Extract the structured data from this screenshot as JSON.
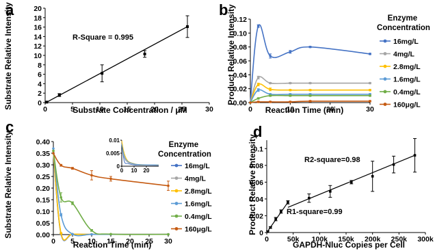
{
  "series_colors": [
    "#4472c4",
    "#a5a5a5",
    "#ffc000",
    "#5b9bd5",
    "#70ad47",
    "#c55a11"
  ],
  "chart_data": [
    {
      "panel": "a",
      "type": "scatter",
      "xlabel": "Substrate Concentration / μM",
      "ylabel": "Substrate Relative Intensity",
      "xlim": [
        0,
        30
      ],
      "ylim": [
        0,
        20
      ],
      "xticks": [
        0,
        5,
        10,
        15,
        20,
        25,
        30
      ],
      "yticks": [
        0,
        2,
        4,
        6,
        8,
        10,
        12,
        14,
        16,
        18,
        20
      ],
      "annotations": [
        {
          "text": "R-Square = 0.995"
        }
      ],
      "points": [
        {
          "x": 0.3,
          "y": 0.1,
          "err": 0.1
        },
        {
          "x": 2.6,
          "y": 1.6,
          "err": 0.3
        },
        {
          "x": 10.4,
          "y": 6.2,
          "err": 1.8
        },
        {
          "x": 18.2,
          "y": 10.3,
          "err": 0.7
        },
        {
          "x": 26,
          "y": 16.1,
          "err": 2.3
        }
      ],
      "fit_line": {
        "x": [
          0.3,
          26
        ],
        "y": [
          0.1,
          16.1
        ]
      }
    },
    {
      "panel": "b",
      "type": "line",
      "xlabel": "Reaction Time (min)",
      "ylabel": "Product Relative Intensity",
      "xlim": [
        0,
        30
      ],
      "ylim": [
        0,
        0.12
      ],
      "xticks": [
        0,
        10,
        20,
        30
      ],
      "yticks": [
        0,
        0.02,
        0.04,
        0.06,
        0.08,
        0.1,
        0.12
      ],
      "ytick_labels": [
        "0.00",
        "0.02",
        "0.04",
        "0.06",
        "0.08",
        "0.10",
        "0.12"
      ],
      "legend_title": "Enzyme Concentration",
      "legend_placement": "right",
      "x": [
        0,
        2,
        5,
        10,
        15,
        30
      ],
      "series": [
        {
          "name": "16mg/L",
          "values": [
            0,
            0.11,
            0.067,
            0.073,
            0.08,
            0.07
          ],
          "err": [
            0,
            0.002,
            0.003,
            0.002,
            0.001,
            0.001
          ]
        },
        {
          "name": "4mg/L",
          "values": [
            0,
            0.036,
            0.028,
            0.028,
            0.028,
            0.028
          ],
          "err": [
            0,
            0.002,
            0.001,
            0.001,
            0.001,
            0.001
          ]
        },
        {
          "name": "2.8mg/L",
          "values": [
            0,
            0.026,
            0.019,
            0.018,
            0.018,
            0.018
          ],
          "err": [
            0,
            0.002,
            0.002,
            0.001,
            0.001,
            0.001
          ]
        },
        {
          "name": "1.6mg/L",
          "values": [
            0,
            0.018,
            0.012,
            0.012,
            0.012,
            0.012
          ],
          "err": [
            0,
            0.002,
            0.001,
            0.001,
            0.001,
            0.001
          ]
        },
        {
          "name": "0.4mg/L",
          "values": [
            0,
            0.006,
            0.01,
            0.01,
            0.01,
            0.01
          ],
          "err": [
            0,
            0.001,
            0.001,
            0.001,
            0.001,
            0.001
          ]
        },
        {
          "name": "160μg/L",
          "values": [
            0,
            0.001,
            0.001,
            0.001,
            0.002,
            0.002
          ],
          "err": [
            0,
            0.001,
            0.001,
            0.001,
            0.001,
            0.001
          ]
        }
      ]
    },
    {
      "panel": "c",
      "type": "line",
      "xlabel": "Reaction Time (min)",
      "ylabel": "Substrate Relative Intensity",
      "xlim": [
        0,
        30
      ],
      "ylim": [
        0,
        0.4
      ],
      "xticks": [
        0,
        5,
        10,
        15,
        20,
        25,
        30
      ],
      "yticks": [
        0,
        0.05,
        0.1,
        0.15,
        0.2,
        0.25,
        0.3,
        0.35,
        0.4
      ],
      "ytick_labels": [
        "0.00",
        "0.05",
        "0.10",
        "0.15",
        "0.20",
        "0.25",
        "0.30",
        "0.35",
        "0.40"
      ],
      "legend_title": "Enzyme Concentration",
      "legend_placement": "right",
      "x": [
        0,
        2,
        5,
        10,
        15,
        30
      ],
      "series": [
        {
          "name": "16mg/L",
          "values": [
            0.35,
            0.002,
            0.001,
            0.001,
            0.001,
            0.001
          ],
          "err": [
            0,
            0.001,
            0.001,
            0.001,
            0.001,
            0.001
          ]
        },
        {
          "name": "4mg/L",
          "values": [
            0.35,
            0.004,
            0.002,
            0.001,
            0.001,
            0.001
          ],
          "err": [
            0,
            0.001,
            0.001,
            0.001,
            0.001,
            0.001
          ]
        },
        {
          "name": "2.8mg/L",
          "values": [
            0.36,
            0.006,
            0.002,
            0.001,
            0.001,
            0.001
          ],
          "err": [
            0,
            0.002,
            0.001,
            0.001,
            0.001,
            0.001
          ]
        },
        {
          "name": "1.6mg/L",
          "values": [
            0.37,
            0.085,
            0.002,
            0.001,
            0.001,
            0.001
          ],
          "err": [
            0,
            0.005,
            0.001,
            0.001,
            0.001,
            0.001
          ]
        },
        {
          "name": "0.4mg/L",
          "values": [
            0.36,
            0.16,
            0.135,
            0.018,
            0.002,
            0.001
          ],
          "err": [
            0,
            0.02,
            0.006,
            0.004,
            0.001,
            0.001
          ]
        },
        {
          "name": "160μg/L",
          "values": [
            0.35,
            0.298,
            0.285,
            0.255,
            0.24,
            0.21
          ],
          "err": [
            0,
            0.004,
            0.004,
            0.02,
            0.01,
            0.02
          ]
        }
      ],
      "inset": {
        "xlim": [
          0,
          30
        ],
        "ylim": [
          0,
          0.01
        ],
        "xticks": [
          0,
          10,
          20
        ],
        "yticks": [
          0,
          0.005,
          0.01
        ],
        "ytick_labels": [
          "0",
          "0.005",
          "0.01"
        ],
        "x": [
          0,
          2,
          5,
          10,
          15,
          30
        ],
        "series": [
          {
            "name": "16mg/L",
            "values": [
              0.0095,
              0.002,
              0.001,
              0.0005,
              0.0004,
              0.0003
            ]
          },
          {
            "name": "4mg/L",
            "values": [
              0.0092,
              0.0035,
              0.0015,
              0.0008,
              0.0005,
              0.0004
            ]
          },
          {
            "name": "2.8mg/L",
            "values": [
              0.0098,
              0.005,
              0.002,
              0.001,
              0.0006,
              0.0005
            ]
          },
          {
            "name": "1.6mg/L",
            "values": [
              0.0085,
              0.004,
              0.0018,
              0.0009,
              0.0006,
              0.0005
            ]
          }
        ]
      }
    },
    {
      "panel": "d",
      "type": "scatter",
      "xlabel": "GAPDH-Nluc Copies per Cell",
      "ylabel": "Product Relative Intensity",
      "xlim": [
        0,
        300000
      ],
      "ylim": [
        0,
        0.11
      ],
      "xticks": [
        0,
        50000,
        100000,
        150000,
        200000,
        250000,
        300000
      ],
      "xtick_labels": [
        "0",
        "50k",
        "100k",
        "150k",
        "200k",
        "250k",
        "300k"
      ],
      "yticks": [
        0,
        0.02,
        0.04,
        0.06,
        0.08,
        0.1
      ],
      "ytick_labels": [
        "0",
        "0.02",
        "0.04",
        "0.06",
        "0.08",
        "0.1"
      ],
      "annotations": [
        {
          "text": "R2-square=0.98"
        },
        {
          "text": "R1-square=0.99"
        }
      ],
      "points": [
        {
          "x": 2000,
          "y": 0.001,
          "err": 0.001
        },
        {
          "x": 7000,
          "y": 0.006,
          "err": 0.001
        },
        {
          "x": 17000,
          "y": 0.016,
          "err": 0.002
        },
        {
          "x": 27000,
          "y": 0.025,
          "err": 0.002
        },
        {
          "x": 40000,
          "y": 0.036,
          "err": 0.002
        },
        {
          "x": 80000,
          "y": 0.041,
          "err": 0.005
        },
        {
          "x": 120000,
          "y": 0.049,
          "err": 0.007
        },
        {
          "x": 160000,
          "y": 0.06,
          "err": 0.002
        },
        {
          "x": 200000,
          "y": 0.067,
          "err": 0.018
        },
        {
          "x": 240000,
          "y": 0.081,
          "err": 0.01
        },
        {
          "x": 280000,
          "y": 0.092,
          "err": 0.02
        }
      ],
      "fit_lines": [
        {
          "x": [
            0,
            40000
          ],
          "y": [
            0,
            0.036
          ]
        },
        {
          "x": [
            40000,
            280000
          ],
          "y": [
            0.03,
            0.092
          ]
        }
      ]
    }
  ]
}
